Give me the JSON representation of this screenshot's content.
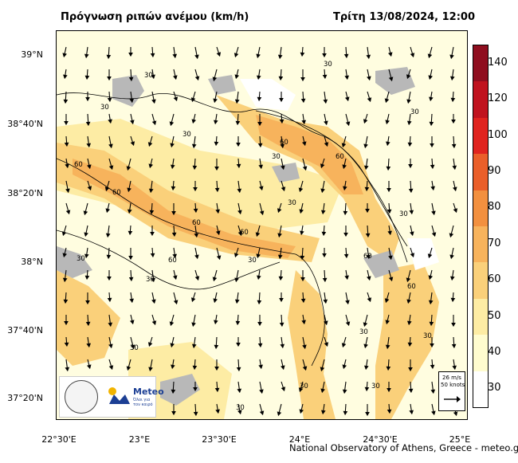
{
  "header": {
    "title": "Πρόγνωση ριπών ανέμου (km/h)",
    "datetime": "Τρίτη 13/08/2024, 12:00"
  },
  "axes": {
    "lat_labels": [
      "39°N",
      "38°40'N",
      "38°20'N",
      "38°N",
      "37°40'N",
      "37°20'N"
    ],
    "lon_labels": [
      "22°30'E",
      "23°E",
      "23°30'E",
      "24°E",
      "24°30'E",
      "25°E"
    ]
  },
  "colorbar": {
    "ticks": [
      "30",
      "40",
      "50",
      "60",
      "70",
      "80",
      "90",
      "100",
      "120",
      "140"
    ],
    "colors": [
      "#ffffff",
      "#fffccf",
      "#fdeca4",
      "#fad07a",
      "#f7b35c",
      "#f2903f",
      "#ea5f2a",
      "#e0241f",
      "#c0131f",
      "#8f0e1f"
    ]
  },
  "contour_labels": [
    "30",
    "30",
    "30",
    "30",
    "30",
    "30",
    "30",
    "30",
    "30",
    "30",
    "30",
    "30",
    "30",
    "30",
    "30",
    "30",
    "30",
    "60",
    "60",
    "60",
    "60",
    "60",
    "60",
    "60",
    "60",
    "60"
  ],
  "reference_vector": {
    "speed": "26 m/s",
    "knots": "50 knots"
  },
  "logos": {
    "brand": "Meteo",
    "tagline": "Όλοι για τον καιρό"
  },
  "credit": "National Observatory of Athens, Greece - meteo.gr"
}
